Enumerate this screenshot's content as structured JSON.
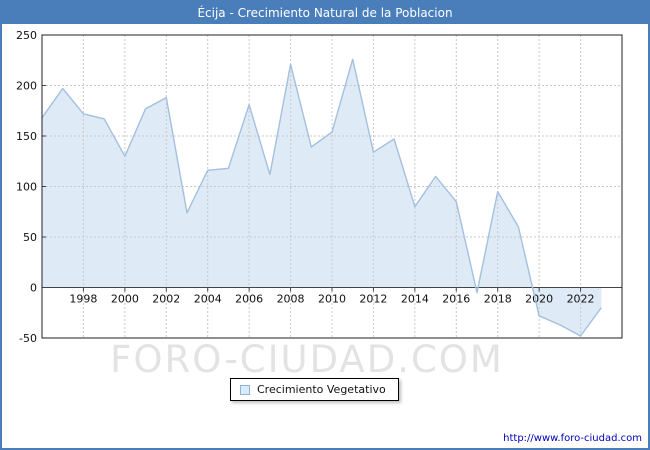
{
  "title_bar": {
    "text": "Écija - Crecimiento Natural de la Poblacion",
    "bg_color": "#4a7ebb",
    "fg_color": "#ffffff"
  },
  "watermark": "FORO-CIUDAD.COM",
  "footer_link": "http://www.foro-ciudad.com",
  "legend": {
    "label": "Crecimiento Vegetativo",
    "marker_fill": "#dcebfa",
    "marker_border": "#8fb3d6"
  },
  "chart_data": {
    "type": "area",
    "title": "Écija - Crecimiento Natural de la Poblacion",
    "xlabel": "",
    "ylabel": "",
    "x": [
      1996,
      1997,
      1998,
      1999,
      2000,
      2001,
      2002,
      2003,
      2004,
      2005,
      2006,
      2007,
      2008,
      2009,
      2010,
      2011,
      2012,
      2013,
      2014,
      2015,
      2016,
      2017,
      2018,
      2019,
      2020,
      2021,
      2022,
      2023
    ],
    "values": [
      168,
      197,
      172,
      167,
      130,
      177,
      188,
      74,
      116,
      118,
      181,
      112,
      221,
      139,
      154,
      226,
      134,
      147,
      80,
      110,
      85,
      -5,
      95,
      60,
      -28,
      -37,
      -48,
      -20
    ],
    "series_name": "Crecimiento Vegetativo",
    "xlim": [
      1996,
      2024
    ],
    "ylim": [
      -50,
      250
    ],
    "yticks": [
      -50,
      0,
      50,
      100,
      150,
      200,
      250
    ],
    "xticks": [
      1998,
      2000,
      2002,
      2004,
      2006,
      2008,
      2010,
      2012,
      2014,
      2016,
      2018,
      2020,
      2022
    ],
    "grid": true,
    "legend_position": "bottom",
    "line_color": "#a3c0de",
    "fill_color": "#dfeaf7"
  }
}
